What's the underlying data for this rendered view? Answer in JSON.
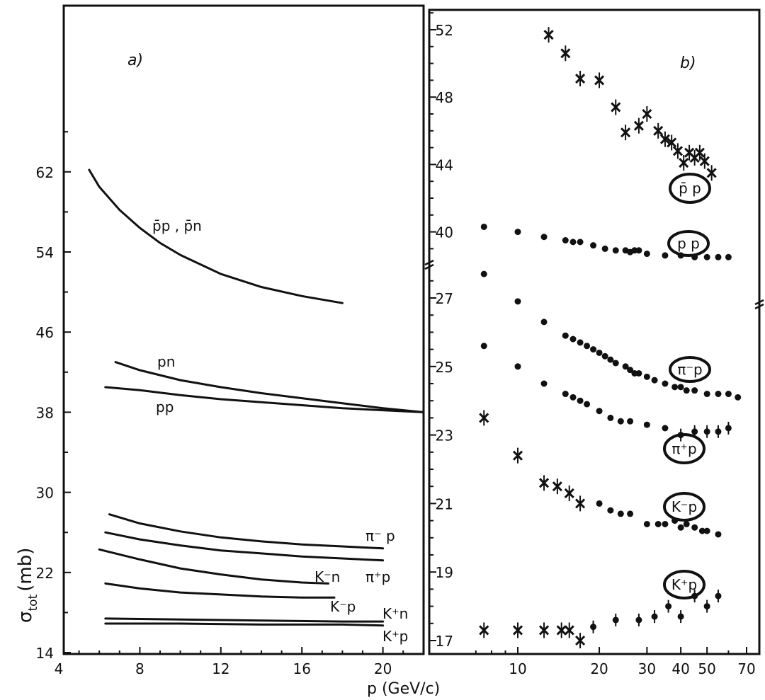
{
  "colors": {
    "ink": "#111111",
    "paper": "#ffffff"
  },
  "axes": {
    "ylabel_main": "σ",
    "ylabel_sub": "tot",
    "ylabel_unit": "(mb)",
    "xlabel": "p (GeV/c)"
  },
  "chart_data": [
    {
      "type": "line",
      "title": "a)",
      "xlabel": "p (GeV/c)",
      "ylabel": "σtot (mb)",
      "xlim": [
        4,
        22
      ],
      "ylim": [
        14,
        62
      ],
      "x_ticks": [
        "4",
        "8",
        "12",
        "16",
        "20"
      ],
      "y_ticks": [
        "14",
        "22",
        "30",
        "38",
        "46",
        "54",
        "62"
      ],
      "grid": false,
      "series": [
        {
          "name": "p̄p , p̄n",
          "x": [
            5.5,
            6,
            7,
            8,
            9,
            10,
            12,
            14,
            16,
            18
          ],
          "y": [
            62.2,
            60.5,
            58.2,
            56.4,
            54.9,
            53.7,
            51.8,
            50.5,
            49.6,
            48.9
          ]
        },
        {
          "name": "pn",
          "x": [
            6.8,
            8,
            10,
            12,
            14,
            16,
            18,
            20,
            22
          ],
          "y": [
            43,
            42.2,
            41.2,
            40.5,
            39.9,
            39.4,
            38.9,
            38.4,
            38.0
          ]
        },
        {
          "name": "pp",
          "x": [
            6.3,
            8,
            10,
            12,
            14,
            16,
            18,
            20,
            22
          ],
          "y": [
            40.5,
            40.2,
            39.7,
            39.3,
            39.0,
            38.7,
            38.4,
            38.2,
            38.0
          ]
        },
        {
          "name": "π⁻p",
          "x": [
            6.5,
            8,
            10,
            12,
            14,
            16,
            18,
            20
          ],
          "y": [
            27.8,
            26.9,
            26.1,
            25.5,
            25.1,
            24.8,
            24.6,
            24.4
          ]
        },
        {
          "name": "π⁺p",
          "x": [
            6.3,
            8,
            10,
            12,
            14,
            16,
            18,
            20
          ],
          "y": [
            26.0,
            25.3,
            24.7,
            24.2,
            23.9,
            23.6,
            23.4,
            23.2
          ]
        },
        {
          "name": "K⁻n",
          "x": [
            6,
            8,
            10,
            12,
            14,
            16,
            17.3
          ],
          "y": [
            24.3,
            23.3,
            22.4,
            21.8,
            21.3,
            21.0,
            20.9
          ]
        },
        {
          "name": "K⁻p",
          "x": [
            6.3,
            8,
            10,
            12,
            14,
            16,
            17.6
          ],
          "y": [
            20.9,
            20.4,
            20.0,
            19.8,
            19.6,
            19.5,
            19.5
          ]
        },
        {
          "name": "K⁺n",
          "x": [
            6.3,
            10,
            14,
            18,
            20
          ],
          "y": [
            17.4,
            17.3,
            17.2,
            17.1,
            17.1
          ]
        },
        {
          "name": "K⁺p",
          "x": [
            6.3,
            10,
            14,
            18,
            20
          ],
          "y": [
            16.9,
            16.9,
            16.8,
            16.8,
            16.7
          ]
        }
      ]
    },
    {
      "type": "scatter",
      "title": "b)",
      "xlabel": "p (GeV/c)",
      "x_scale": "log",
      "xlim": [
        6.3,
        70
      ],
      "x_ticks": [
        "10",
        "20",
        "30",
        "40",
        "50",
        "70"
      ],
      "y_ticks_upper": [
        "40",
        "44",
        "48",
        "52"
      ],
      "y_ticks_lower": [
        "17",
        "19",
        "21",
        "23",
        "25",
        "27"
      ],
      "upper_ylim": [
        38.3,
        53
      ],
      "lower_ylim": [
        16.8,
        28
      ],
      "grid": false,
      "series": [
        {
          "name": "p̄p",
          "x": [
            13,
            15,
            17,
            20,
            23,
            25,
            28,
            30,
            33,
            35,
            37,
            39,
            41,
            43,
            45,
            47,
            49,
            52
          ],
          "y": [
            51.7,
            50.6,
            49.1,
            49.0,
            47.4,
            45.9,
            46.3,
            47.0,
            46.0,
            45.5,
            45.3,
            44.8,
            44.1,
            44.7,
            44.4,
            44.7,
            44.2,
            43.5
          ]
        },
        {
          "name": "pp",
          "x": [
            7.5,
            10,
            12.5,
            15,
            16,
            17,
            19,
            21,
            23,
            25,
            26,
            27,
            28,
            30,
            35,
            40,
            45,
            50,
            55,
            60
          ],
          "y": [
            40.3,
            40.0,
            39.7,
            39.5,
            39.4,
            39.4,
            39.2,
            39.0,
            38.9,
            38.9,
            38.8,
            38.9,
            38.9,
            38.7,
            38.6,
            38.6,
            38.5,
            38.5,
            38.5,
            38.5
          ]
        },
        {
          "name": "π⁻p",
          "x": [
            7.5,
            10,
            12.5,
            15,
            16,
            17,
            18,
            19,
            20,
            21,
            22,
            23,
            25,
            26,
            27,
            28,
            30,
            32,
            35,
            38,
            40,
            42,
            45,
            50,
            55,
            60,
            65
          ],
          "y": [
            27.7,
            26.9,
            26.3,
            25.9,
            25.8,
            25.7,
            25.6,
            25.5,
            25.4,
            25.3,
            25.2,
            25.1,
            25.0,
            24.9,
            24.8,
            24.8,
            24.7,
            24.6,
            24.5,
            24.4,
            24.4,
            24.3,
            24.3,
            24.2,
            24.2,
            24.2,
            24.1
          ]
        },
        {
          "name": "π⁺p",
          "x": [
            7.5,
            10,
            12.5,
            15,
            16,
            17,
            18,
            20,
            22,
            24,
            26,
            30,
            35,
            40,
            45,
            50,
            55,
            60
          ],
          "y": [
            25.6,
            25.0,
            24.5,
            24.2,
            24.1,
            24.0,
            23.9,
            23.7,
            23.5,
            23.4,
            23.4,
            23.3,
            23.2,
            23.0,
            23.1,
            23.1,
            23.1,
            23.2
          ]
        },
        {
          "name": "K⁻p",
          "x": [
            7.5,
            10,
            12.5,
            14,
            15.5,
            17,
            20,
            22,
            24,
            26,
            30,
            33,
            35,
            38,
            40,
            42,
            45,
            48,
            50,
            55
          ],
          "y": [
            23.5,
            22.4,
            21.6,
            21.5,
            21.3,
            21.0,
            21.0,
            20.8,
            20.7,
            20.7,
            20.4,
            20.4,
            20.4,
            20.5,
            20.3,
            20.4,
            20.3,
            20.2,
            20.2,
            20.1
          ]
        },
        {
          "name": "K⁺p",
          "x": [
            7.5,
            10,
            12.5,
            14.5,
            15.5,
            17,
            19,
            23,
            28,
            32,
            36,
            40,
            45,
            50,
            55
          ],
          "y": [
            17.3,
            17.3,
            17.3,
            17.3,
            17.3,
            17.0,
            17.4,
            17.6,
            17.6,
            17.7,
            18.0,
            17.7,
            18.3,
            18.0,
            18.3
          ]
        }
      ]
    }
  ],
  "annotations_a": {
    "pbar_p": "p̄p , p̄n",
    "pn": "pn",
    "pp": "pp",
    "pim_p": "π⁻ p",
    "pip_p": "π⁺p",
    "km_n": "K⁻n",
    "km_p": "K⁻p",
    "kp_n": "K⁺n",
    "kp_p": "K⁺p"
  },
  "annotations_b": {
    "pbar_p": "p̄ p",
    "pp": "p p",
    "pim_p": "π⁻p",
    "pip_p": "π⁺p",
    "km_p": "K⁻p",
    "kp_p": "K⁺p"
  }
}
